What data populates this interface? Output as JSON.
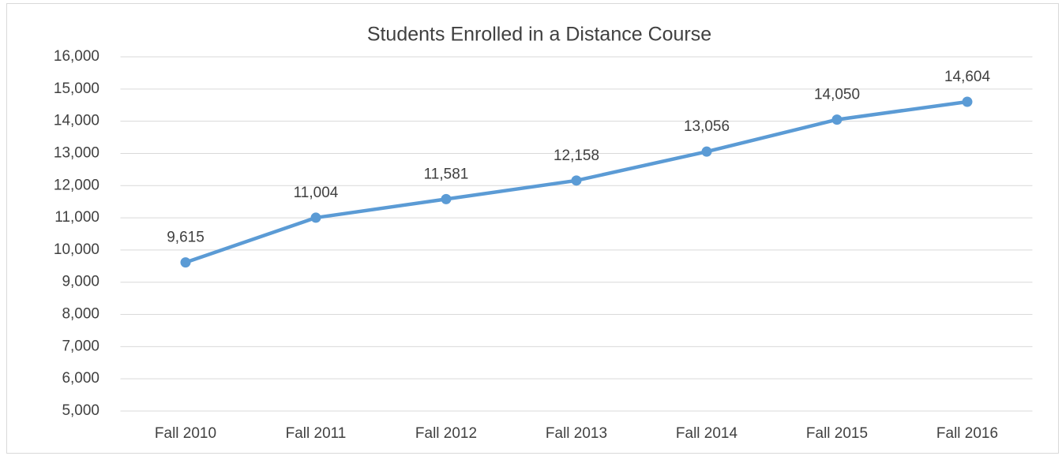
{
  "chart_data": {
    "type": "line",
    "title": "Students Enrolled in a Distance Course",
    "categories": [
      "Fall 2010",
      "Fall 2011",
      "Fall 2012",
      "Fall 2013",
      "Fall 2014",
      "Fall 2015",
      "Fall 2016"
    ],
    "series": [
      {
        "name": "Students Enrolled",
        "color": "#5b9bd5",
        "values": [
          9615,
          11004,
          11581,
          12158,
          13056,
          14050,
          14604
        ],
        "value_labels": [
          "9,615",
          "11,004",
          "11,581",
          "12,158",
          "13,056",
          "14,050",
          "14,604"
        ]
      }
    ],
    "ylim": [
      5000,
      16000
    ],
    "yticks": [
      {
        "value": 5000,
        "label": "5,000"
      },
      {
        "value": 6000,
        "label": "6,000"
      },
      {
        "value": 7000,
        "label": "7,000"
      },
      {
        "value": 8000,
        "label": "8,000"
      },
      {
        "value": 9000,
        "label": "9,000"
      },
      {
        "value": 10000,
        "label": "10,000"
      },
      {
        "value": 11000,
        "label": "11,000"
      },
      {
        "value": 12000,
        "label": "12,000"
      },
      {
        "value": 13000,
        "label": "13,000"
      },
      {
        "value": 14000,
        "label": "14,000"
      },
      {
        "value": 15000,
        "label": "15,000"
      },
      {
        "value": 16000,
        "label": "16,000"
      }
    ],
    "grid": true
  }
}
